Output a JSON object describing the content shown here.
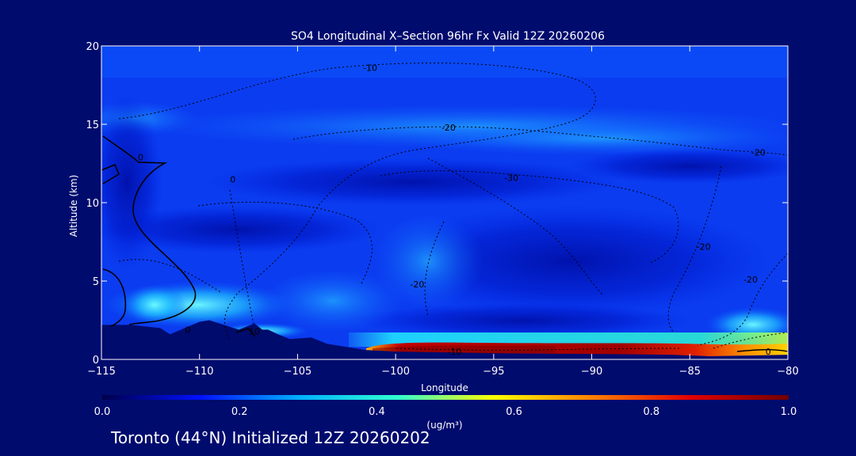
{
  "chart_data": {
    "type": "heatmap",
    "title": "SO4 Longitudinal X–Section 96hr  Fx Valid 12Z 20260206",
    "xlabel": "Longitude",
    "ylabel": "Altitude (km)",
    "xlim": [
      -115,
      -80
    ],
    "ylim": [
      0,
      20
    ],
    "x_ticks": [
      -115,
      -110,
      -105,
      -100,
      -95,
      -90,
      -85,
      -80
    ],
    "x_tick_labels": [
      "−115",
      "−110",
      "−105",
      "−100",
      "−95",
      "−90",
      "−85",
      "−80"
    ],
    "y_ticks": [
      0,
      5,
      10,
      15,
      20
    ],
    "y_tick_labels": [
      "0",
      "5",
      "10",
      "15",
      "20"
    ],
    "colorbar": {
      "label": "(ug/m³)",
      "range": [
        0.0,
        1.0
      ],
      "ticks": [
        0.0,
        0.2,
        0.4,
        0.6,
        0.8,
        1.0
      ],
      "tick_labels": [
        "0.0",
        "0.2",
        "0.4",
        "0.6",
        "0.8",
        "1.0"
      ],
      "colors": [
        "#00004a",
        "#0010ff",
        "#00b0ff",
        "#30ffd0",
        "#ffff00",
        "#ff8000",
        "#e00000",
        "#700000"
      ]
    },
    "contour_labels": [
      {
        "x": -110.6,
        "y": 1.9,
        "text": "0"
      },
      {
        "x": -113.0,
        "y": 12.9,
        "text": "0"
      },
      {
        "x": -108.3,
        "y": 11.5,
        "text": "0"
      },
      {
        "x": -107.2,
        "y": 1.8,
        "text": "10"
      },
      {
        "x": -101.3,
        "y": 18.6,
        "text": "-10"
      },
      {
        "x": -97.3,
        "y": 14.8,
        "text": "-20"
      },
      {
        "x": -98.9,
        "y": 4.8,
        "text": "-20"
      },
      {
        "x": -94.1,
        "y": 11.6,
        "text": "-30"
      },
      {
        "x": -81.5,
        "y": 13.2,
        "text": "-20"
      },
      {
        "x": -84.3,
        "y": 7.2,
        "text": "-20"
      },
      {
        "x": -81.9,
        "y": 5.1,
        "text": "-20"
      },
      {
        "x": -97.0,
        "y": 0.5,
        "text": "-10"
      },
      {
        "x": -81.0,
        "y": 0.5,
        "text": "0"
      }
    ],
    "terrain_km": [
      [
        -115,
        2.2
      ],
      [
        -113.5,
        2.2
      ],
      [
        -112,
        2.0
      ],
      [
        -111.5,
        1.6
      ],
      [
        -110,
        2.4
      ],
      [
        -109.5,
        2.5
      ],
      [
        -108,
        1.9
      ],
      [
        -107.2,
        2.3
      ],
      [
        -106.8,
        1.9
      ],
      [
        -106.5,
        1.9
      ],
      [
        -106.0,
        1.6
      ],
      [
        -105.4,
        1.3
      ],
      [
        -104.3,
        1.4
      ],
      [
        -103.5,
        1.0
      ],
      [
        -102.5,
        0.8
      ],
      [
        -101.5,
        0.6
      ],
      [
        -100,
        0.5
      ],
      [
        -95,
        0.4
      ],
      [
        -90,
        0.35
      ],
      [
        -86,
        0.3
      ],
      [
        -84,
        0.2
      ],
      [
        -80,
        0.3
      ]
    ]
  },
  "footer_text": "Toronto (44°N) Initialized 12Z 20260202"
}
